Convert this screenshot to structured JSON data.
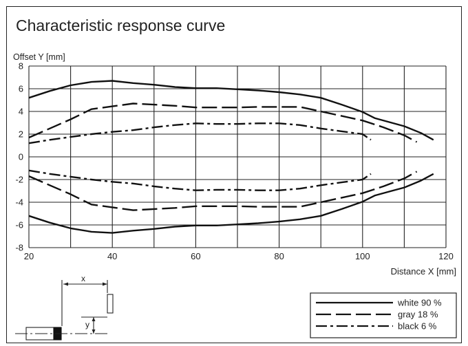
{
  "chart_data": {
    "type": "line",
    "title": "Characteristic response curve",
    "xlabel": "Distance X [mm]",
    "ylabel": "Offset Y [mm]",
    "xlim": [
      20,
      120
    ],
    "ylim": [
      -8,
      8
    ],
    "x_ticks": [
      20,
      40,
      60,
      80,
      100,
      120
    ],
    "y_ticks": [
      8,
      6,
      4,
      2,
      0,
      -2,
      -4,
      -6,
      -8
    ],
    "grid": true,
    "legend_position": "bottom-right",
    "series": [
      {
        "name": "white 90 %",
        "style": "solid",
        "points": [
          [
            20,
            5.2
          ],
          [
            25,
            5.8
          ],
          [
            30,
            6.3
          ],
          [
            35,
            6.6
          ],
          [
            40,
            6.7
          ],
          [
            45,
            6.5
          ],
          [
            50,
            6.35
          ],
          [
            55,
            6.15
          ],
          [
            60,
            6.05
          ],
          [
            65,
            6.05
          ],
          [
            70,
            5.95
          ],
          [
            75,
            5.85
          ],
          [
            80,
            5.7
          ],
          [
            85,
            5.5
          ],
          [
            90,
            5.2
          ],
          [
            95,
            4.6
          ],
          [
            100,
            3.95
          ],
          [
            103,
            3.4
          ],
          [
            107,
            3.0
          ],
          [
            110,
            2.7
          ],
          [
            114,
            2.1
          ],
          [
            117,
            1.5
          ]
        ],
        "mirror": true
      },
      {
        "name": "gray 18 %",
        "style": "dashed",
        "points": [
          [
            20,
            1.7
          ],
          [
            25,
            2.5
          ],
          [
            30,
            3.3
          ],
          [
            35,
            4.2
          ],
          [
            40,
            4.45
          ],
          [
            45,
            4.7
          ],
          [
            50,
            4.6
          ],
          [
            55,
            4.5
          ],
          [
            60,
            4.35
          ],
          [
            65,
            4.35
          ],
          [
            70,
            4.35
          ],
          [
            75,
            4.4
          ],
          [
            80,
            4.4
          ],
          [
            85,
            4.4
          ],
          [
            90,
            4.0
          ],
          [
            95,
            3.6
          ],
          [
            100,
            3.2
          ],
          [
            105,
            2.6
          ],
          [
            110,
            1.9
          ],
          [
            113,
            1.3
          ]
        ],
        "mirror": true
      },
      {
        "name": "black 6 %",
        "style": "dash-dot",
        "points": [
          [
            20,
            1.2
          ],
          [
            25,
            1.5
          ],
          [
            30,
            1.75
          ],
          [
            35,
            2.0
          ],
          [
            40,
            2.2
          ],
          [
            45,
            2.35
          ],
          [
            50,
            2.6
          ],
          [
            55,
            2.8
          ],
          [
            60,
            2.95
          ],
          [
            65,
            2.9
          ],
          [
            70,
            2.9
          ],
          [
            75,
            2.95
          ],
          [
            80,
            2.95
          ],
          [
            85,
            2.8
          ],
          [
            90,
            2.5
          ],
          [
            95,
            2.25
          ],
          [
            100,
            2.0
          ],
          [
            102,
            1.5
          ]
        ],
        "mirror": true
      }
    ]
  },
  "diagram": {
    "distance_label": "x",
    "offset_label": "y"
  }
}
